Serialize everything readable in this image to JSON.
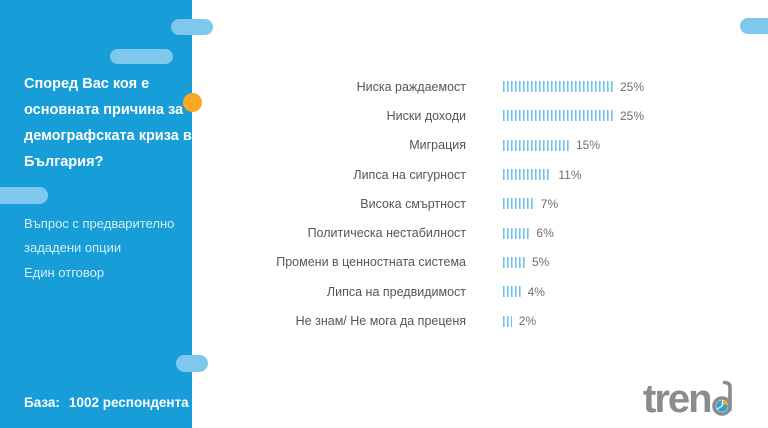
{
  "sidebar": {
    "title_lines": [
      "Според Вас коя е",
      "основната причина за",
      "демографската криза в",
      "България?"
    ],
    "subtitle_lines": [
      "Въпрос с предварително",
      "зададени опции"
    ],
    "answer_type": "Един отговор",
    "base_label": "База:",
    "base_value": "1002 респондента"
  },
  "chart_data": {
    "type": "bar",
    "orientation": "horizontal",
    "categories": [
      "Ниска раждаемост",
      "Ниски доходи",
      "Миграция",
      "Липса на сигурност",
      "Висока смъртност",
      "Политическа нестабилност",
      "Промени в ценностната система",
      "Липса на предвидимост",
      "Не знам/ Не мога да преценя"
    ],
    "values": [
      25,
      25,
      15,
      11,
      7,
      6,
      5,
      4,
      2
    ],
    "value_labels": [
      "25%",
      "25%",
      "15%",
      "11%",
      "7%",
      "6%",
      "5%",
      "4%",
      "2%"
    ],
    "unit": "%",
    "xlim": [
      0,
      25
    ],
    "grid": false,
    "legend": false,
    "bar_style": "striped",
    "bar_color": "#7DC8EC"
  },
  "logo": {
    "text": "tren",
    "full_text": "trend"
  },
  "colors": {
    "sidebar_blue": "#179DD8",
    "pill_light_blue": "#7DC8EC",
    "dot_orange": "#F9A826",
    "category_text": "#54565A",
    "value_text": "#6D6E71",
    "logo_gray": "#8A8C8E",
    "pie_blue": "#2E9FD9",
    "pie_yellow": "#F6A81C"
  }
}
